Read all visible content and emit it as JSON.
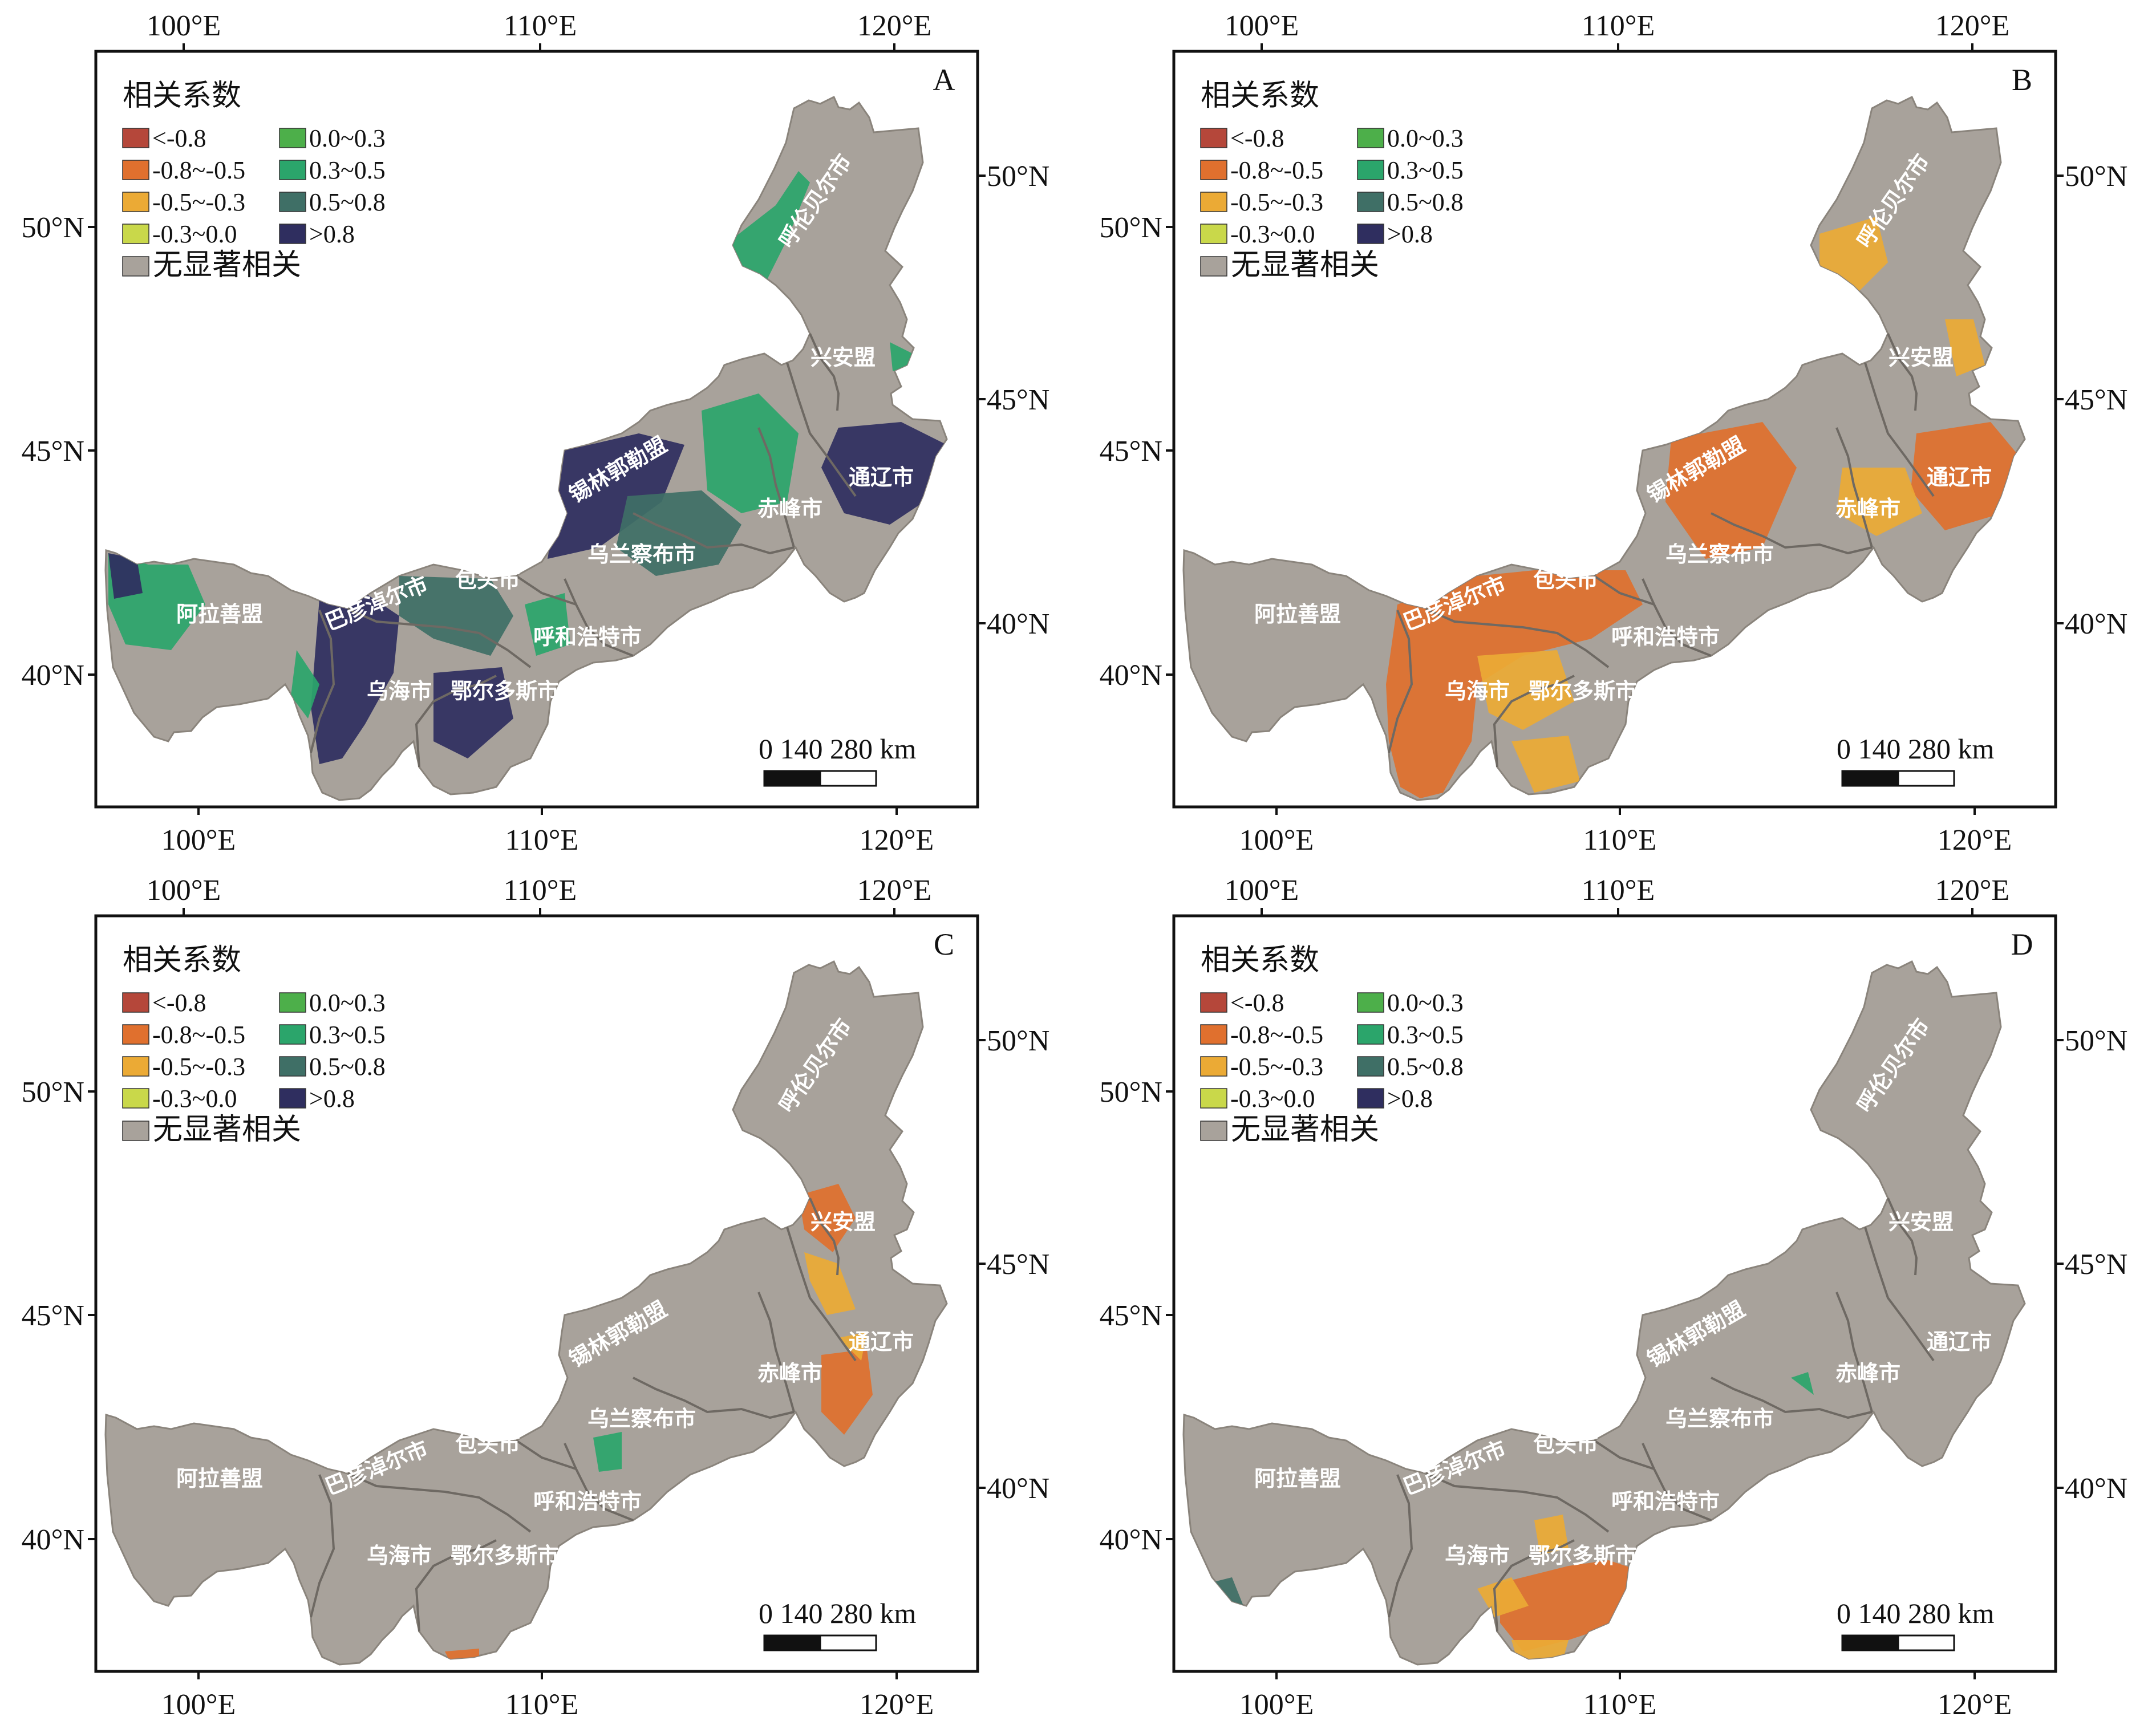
{
  "panels": [
    {
      "letter": "A",
      "pattern": "A"
    },
    {
      "letter": "B",
      "pattern": "B"
    },
    {
      "letter": "C",
      "pattern": "C"
    },
    {
      "letter": "D",
      "pattern": "D"
    }
  ],
  "axes": {
    "lon_ticks": [
      "100°E",
      "110°E",
      "120°E"
    ],
    "lat_ticks_left": [
      "40°N",
      "45°N",
      "50°N"
    ],
    "lat_ticks_right": [
      "40°N",
      "45°N",
      "50°N"
    ]
  },
  "legend": {
    "title": "相关系数",
    "items": [
      {
        "label": "<-0.8",
        "color": "#b5473a"
      },
      {
        "label": "-0.8~-0.5",
        "color": "#e0702e"
      },
      {
        "label": "-0.5~-0.3",
        "color": "#ebaa35"
      },
      {
        "label": "-0.3~0.0",
        "color": "#c9d84a"
      },
      {
        "label": "0.0~0.3",
        "color": "#4daf4a"
      },
      {
        "label": "0.3~0.5",
        "color": "#2ba56b"
      },
      {
        "label": "0.5~0.8",
        "color": "#3f6f66"
      },
      {
        "label": ">0.8",
        "color": "#2f2e5f"
      }
    ],
    "none_label": "无显著相关",
    "none_color": "#a8a29b"
  },
  "cities": {
    "hulunbuir": "呼伦贝尔市",
    "xinganmeng": "兴安盟",
    "tongliao": "通辽市",
    "chifeng": "赤峰市",
    "xilingol": "锡林郭勒盟",
    "ulanqab": "乌兰察布市",
    "baotou": "包头市",
    "hohhot": "呼和浩特市",
    "bayannur": "巴彦淖尔市",
    "alxa": "阿拉善盟",
    "wuhai": "乌海市",
    "ordos": "鄂尔多斯市"
  },
  "scale_bar": {
    "label": "0  140 280 km"
  }
}
